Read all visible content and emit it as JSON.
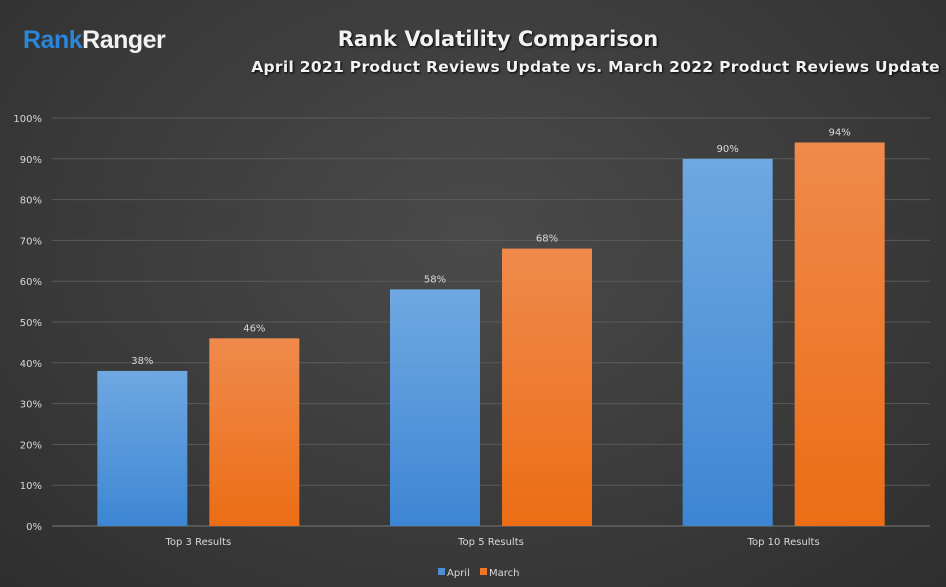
{
  "logo": {
    "part1": "Rank",
    "part2": "Ranger"
  },
  "chart_data": {
    "type": "bar",
    "title": "Rank Volatility Comparison",
    "subtitle": "April 2021 Product Reviews Update vs. March 2022 Product Reviews Update",
    "categories": [
      "Top 3 Results",
      "Top 5 Results",
      "Top 10 Results"
    ],
    "series": [
      {
        "name": "April",
        "values": [
          38,
          58,
          90
        ],
        "labels": [
          "38%",
          "58%",
          "90%"
        ],
        "color": "#4a8fd6"
      },
      {
        "name": "March",
        "values": [
          46,
          68,
          94
        ],
        "labels": [
          "46%",
          "68%",
          "94%"
        ],
        "color": "#ee7626"
      }
    ],
    "ylim": [
      0,
      100
    ],
    "yticks": [
      "0%",
      "10%",
      "20%",
      "30%",
      "40%",
      "50%",
      "60%",
      "70%",
      "80%",
      "90%",
      "100%"
    ],
    "grid": true,
    "legend": "bottom"
  }
}
